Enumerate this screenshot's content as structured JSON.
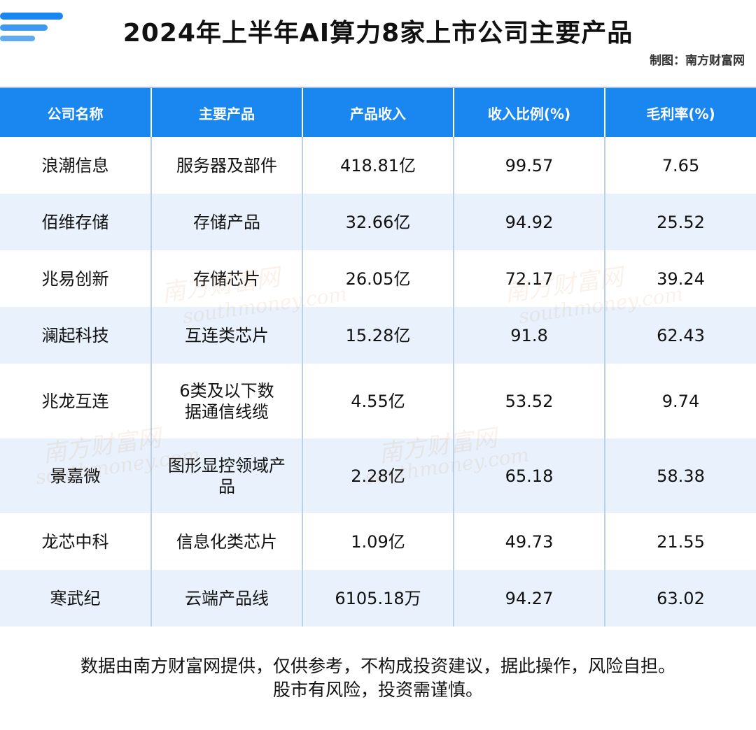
{
  "title": "2024年上半年AI算力8家上市公司主要产品",
  "credit": "制图：南方财富网",
  "table": {
    "headers": [
      "公司名称",
      "主要产品",
      "产品收入",
      "收入比例(%)",
      "毛利率(%)"
    ],
    "rows": [
      {
        "company": "浪潮信息",
        "product": "服务器及部件",
        "revenue": "418.81亿",
        "ratio": "99.57",
        "margin": "7.65"
      },
      {
        "company": "佰维存储",
        "product": "存储产品",
        "revenue": "32.66亿",
        "ratio": "94.92",
        "margin": "25.52"
      },
      {
        "company": "兆易创新",
        "product": "存储芯片",
        "revenue": "26.05亿",
        "ratio": "72.17",
        "margin": "39.24"
      },
      {
        "company": "澜起科技",
        "product": "互连类芯片",
        "revenue": "15.28亿",
        "ratio": "91.8",
        "margin": "62.43"
      },
      {
        "company": "兆龙互连",
        "product": "6类及以下数据通信线缆",
        "revenue": "4.55亿",
        "ratio": "53.52",
        "margin": "9.74"
      },
      {
        "company": "景嘉微",
        "product": "图形显控领域产品",
        "revenue": "2.28亿",
        "ratio": "65.18",
        "margin": "58.38"
      },
      {
        "company": "龙芯中科",
        "product": "信息化类芯片",
        "revenue": "1.09亿",
        "ratio": "49.73",
        "margin": "21.55"
      },
      {
        "company": "寒武纪",
        "product": "云端产品线",
        "revenue": "6105.18万",
        "ratio": "94.27",
        "margin": "63.02"
      }
    ]
  },
  "watermark": {
    "cn": "南方财富网",
    "en": "southmoney.com"
  },
  "disclaimer": [
    "数据由南方财富网提供，仅供参考，不构成投资建议，据此操作，风险自担。",
    "股市有风险，投资需谨慎。"
  ],
  "colors": {
    "header_bg": "#1a86f0",
    "alt_row_bg": "#e8f1fc",
    "accent": "#1a86f0"
  }
}
